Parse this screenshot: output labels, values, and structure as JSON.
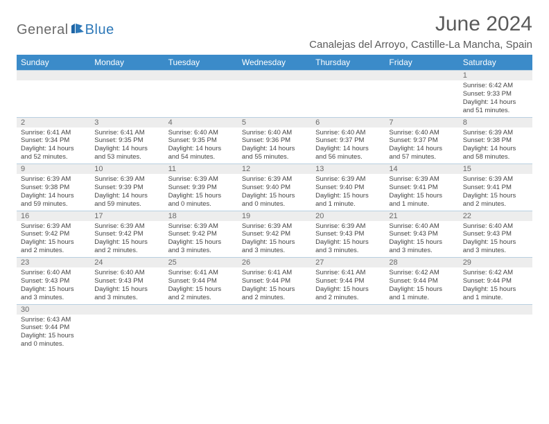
{
  "logo": {
    "part1": "General",
    "part2": "Blue"
  },
  "title": "June 2024",
  "location": "Canalejas del Arroyo, Castille-La Mancha, Spain",
  "colors": {
    "header_bg": "#3b8bc9",
    "header_text": "#ffffff",
    "datenum_bg": "#ededed",
    "rule": "#b8cfe0",
    "logo_gray": "#6a6a6a",
    "logo_blue": "#2d78b8"
  },
  "day_headers": [
    "Sunday",
    "Monday",
    "Tuesday",
    "Wednesday",
    "Thursday",
    "Friday",
    "Saturday"
  ],
  "weeks": [
    {
      "nums": [
        "",
        "",
        "",
        "",
        "",
        "",
        "1"
      ],
      "cells": [
        "",
        "",
        "",
        "",
        "",
        "",
        "Sunrise: 6:42 AM\nSunset: 9:33 PM\nDaylight: 14 hours and 51 minutes."
      ]
    },
    {
      "nums": [
        "2",
        "3",
        "4",
        "5",
        "6",
        "7",
        "8"
      ],
      "cells": [
        "Sunrise: 6:41 AM\nSunset: 9:34 PM\nDaylight: 14 hours and 52 minutes.",
        "Sunrise: 6:41 AM\nSunset: 9:35 PM\nDaylight: 14 hours and 53 minutes.",
        "Sunrise: 6:40 AM\nSunset: 9:35 PM\nDaylight: 14 hours and 54 minutes.",
        "Sunrise: 6:40 AM\nSunset: 9:36 PM\nDaylight: 14 hours and 55 minutes.",
        "Sunrise: 6:40 AM\nSunset: 9:37 PM\nDaylight: 14 hours and 56 minutes.",
        "Sunrise: 6:40 AM\nSunset: 9:37 PM\nDaylight: 14 hours and 57 minutes.",
        "Sunrise: 6:39 AM\nSunset: 9:38 PM\nDaylight: 14 hours and 58 minutes."
      ]
    },
    {
      "nums": [
        "9",
        "10",
        "11",
        "12",
        "13",
        "14",
        "15"
      ],
      "cells": [
        "Sunrise: 6:39 AM\nSunset: 9:38 PM\nDaylight: 14 hours and 59 minutes.",
        "Sunrise: 6:39 AM\nSunset: 9:39 PM\nDaylight: 14 hours and 59 minutes.",
        "Sunrise: 6:39 AM\nSunset: 9:39 PM\nDaylight: 15 hours and 0 minutes.",
        "Sunrise: 6:39 AM\nSunset: 9:40 PM\nDaylight: 15 hours and 0 minutes.",
        "Sunrise: 6:39 AM\nSunset: 9:40 PM\nDaylight: 15 hours and 1 minute.",
        "Sunrise: 6:39 AM\nSunset: 9:41 PM\nDaylight: 15 hours and 1 minute.",
        "Sunrise: 6:39 AM\nSunset: 9:41 PM\nDaylight: 15 hours and 2 minutes."
      ]
    },
    {
      "nums": [
        "16",
        "17",
        "18",
        "19",
        "20",
        "21",
        "22"
      ],
      "cells": [
        "Sunrise: 6:39 AM\nSunset: 9:42 PM\nDaylight: 15 hours and 2 minutes.",
        "Sunrise: 6:39 AM\nSunset: 9:42 PM\nDaylight: 15 hours and 2 minutes.",
        "Sunrise: 6:39 AM\nSunset: 9:42 PM\nDaylight: 15 hours and 3 minutes.",
        "Sunrise: 6:39 AM\nSunset: 9:42 PM\nDaylight: 15 hours and 3 minutes.",
        "Sunrise: 6:39 AM\nSunset: 9:43 PM\nDaylight: 15 hours and 3 minutes.",
        "Sunrise: 6:40 AM\nSunset: 9:43 PM\nDaylight: 15 hours and 3 minutes.",
        "Sunrise: 6:40 AM\nSunset: 9:43 PM\nDaylight: 15 hours and 3 minutes."
      ]
    },
    {
      "nums": [
        "23",
        "24",
        "25",
        "26",
        "27",
        "28",
        "29"
      ],
      "cells": [
        "Sunrise: 6:40 AM\nSunset: 9:43 PM\nDaylight: 15 hours and 3 minutes.",
        "Sunrise: 6:40 AM\nSunset: 9:43 PM\nDaylight: 15 hours and 3 minutes.",
        "Sunrise: 6:41 AM\nSunset: 9:44 PM\nDaylight: 15 hours and 2 minutes.",
        "Sunrise: 6:41 AM\nSunset: 9:44 PM\nDaylight: 15 hours and 2 minutes.",
        "Sunrise: 6:41 AM\nSunset: 9:44 PM\nDaylight: 15 hours and 2 minutes.",
        "Sunrise: 6:42 AM\nSunset: 9:44 PM\nDaylight: 15 hours and 1 minute.",
        "Sunrise: 6:42 AM\nSunset: 9:44 PM\nDaylight: 15 hours and 1 minute."
      ]
    },
    {
      "nums": [
        "30",
        "",
        "",
        "",
        "",
        "",
        ""
      ],
      "cells": [
        "Sunrise: 6:43 AM\nSunset: 9:44 PM\nDaylight: 15 hours and 0 minutes.",
        "",
        "",
        "",
        "",
        "",
        ""
      ]
    }
  ]
}
